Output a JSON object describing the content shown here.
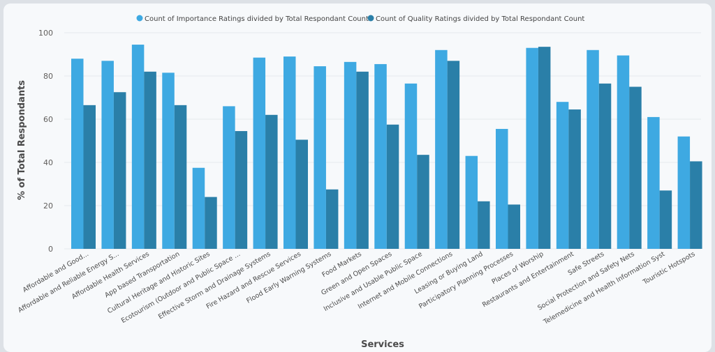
{
  "chart_data": {
    "type": "bar",
    "xlabel": "Services",
    "ylabel": "% of Total Respondants",
    "ylim": [
      0,
      100
    ],
    "yticks": [
      0,
      20,
      40,
      60,
      80,
      100
    ],
    "grid": true,
    "legend_position": "top-center",
    "categories": [
      "Affordable and Good...",
      "Affordable and Reliable Energy S...",
      "Affordable Health Services",
      "App based Transportation",
      "Cultural Heritage and Historic Sites",
      "Ecotourism (Outdoor and Public Space ...",
      "Effective Storm and Drainage Systems",
      "Fire Hazard and Rescue Services",
      "Flood Early Warning Systems",
      "Food Markets",
      "Green and Open Spaces",
      "Inclusive and Usable Public Space",
      "Internet and Mobile Connections",
      "Leasing or Buying Land",
      "Participatory Planning Processes",
      "Places of Worship",
      "Restaurants and Entertainment",
      "Safe Streets",
      "Social Protection and Safety Nets",
      "Telemedicine and Health Information Syst",
      "Touristic Hotspots"
    ],
    "series": [
      {
        "name": "Count of Importance Ratings divided by Total Respondant Count",
        "color": "#3ea9e2",
        "values": [
          88,
          87,
          94.5,
          81.5,
          37.5,
          66,
          88.5,
          89,
          84.5,
          86.5,
          85.5,
          76.5,
          92,
          43,
          55.5,
          93,
          68,
          92,
          89.5,
          61,
          52
        ]
      },
      {
        "name": "Count of Quality Ratings divided by Total Respondant Count",
        "color": "#2a7fa8",
        "values": [
          66.5,
          72.5,
          82,
          66.5,
          24,
          54.5,
          62,
          50.5,
          27.5,
          82,
          57.5,
          43.5,
          87,
          22,
          20.5,
          93.5,
          64.5,
          76.5,
          75,
          27,
          40.5
        ]
      }
    ]
  }
}
